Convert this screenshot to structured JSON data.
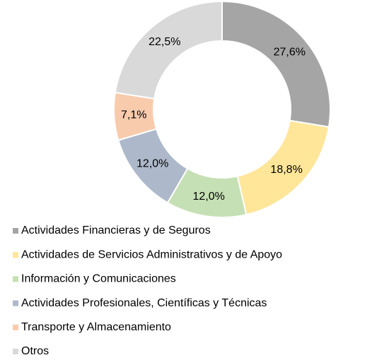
{
  "chart_data": {
    "type": "donut",
    "categories": [
      "Actividades Financieras y de Seguros",
      "Actividades de Servicios Administrativos y de Apoyo",
      "Información y Comunicaciones",
      "Actividades Profesionales, Científicas y Técnicas",
      "Transporte y Almacenamiento",
      "Otros"
    ],
    "values": [
      27.6,
      18.8,
      12.0,
      12.0,
      7.1,
      22.5
    ],
    "value_labels": [
      "27,6%",
      "18,8%",
      "12,0%",
      "12,0%",
      "7,1%",
      "22,5%"
    ],
    "colors": [
      "#a5a5a5",
      "#ffe699",
      "#c5e0b4",
      "#adb9ca",
      "#f8cbad",
      "#d9d9d9"
    ],
    "legend": "bottom"
  }
}
